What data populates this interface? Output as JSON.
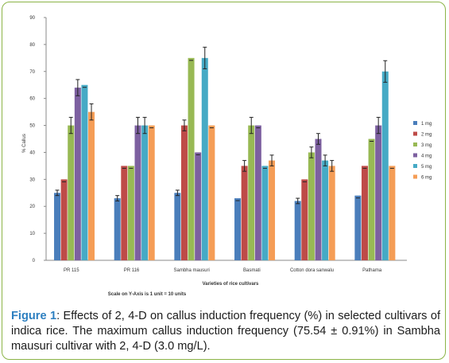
{
  "chart_data": {
    "type": "bar",
    "title": "",
    "ylabel": "% Callus",
    "xlabel": "Varieties of rice cultivars",
    "scale_note": "Scale on Y-Axis is 1 unit = 10 units",
    "ylim": [
      0,
      90
    ],
    "yticks": [
      "0",
      "10",
      "20",
      "30",
      "40",
      "50",
      "60",
      "70",
      "80",
      "90"
    ],
    "categories": [
      "PR 115",
      "PR 116",
      "Sambha mausuri",
      "Basmati",
      "Cotton dora sanwalu",
      "Pathama"
    ],
    "series": [
      {
        "name": "1 mg",
        "color": "#4a7ebb",
        "values": [
          25,
          23,
          25,
          23,
          22,
          24
        ],
        "errors": [
          1,
          1,
          1,
          0,
          1,
          0
        ]
      },
      {
        "name": "2 mg",
        "color": "#be4b48",
        "values": [
          30,
          35,
          50,
          35,
          30,
          35
        ],
        "errors": [
          0,
          0,
          2,
          2,
          0,
          0
        ]
      },
      {
        "name": "3 mg",
        "color": "#98b954",
        "values": [
          50,
          35,
          75,
          50,
          40,
          45
        ],
        "errors": [
          3,
          0,
          0,
          3,
          2,
          0
        ]
      },
      {
        "name": "4 mg",
        "color": "#7d60a0",
        "values": [
          64,
          50,
          40,
          50,
          45,
          50
        ],
        "errors": [
          3,
          3,
          0,
          0,
          2,
          3
        ]
      },
      {
        "name": "5 mg",
        "color": "#46aac5",
        "values": [
          65,
          50,
          75,
          35,
          37,
          70
        ],
        "errors": [
          0,
          3,
          4,
          0,
          2,
          4
        ]
      },
      {
        "name": "6 mg",
        "color": "#f59d56",
        "values": [
          55,
          50,
          50,
          37,
          35,
          35
        ],
        "errors": [
          3,
          0,
          0,
          2,
          2,
          0
        ]
      }
    ],
    "grid": false,
    "legend_position": "right"
  },
  "caption": {
    "label": "Figure 1",
    "text": ": Effects of 2, 4-D on callus induction frequency (%) in selected cultivars of indica rice. The maximum callus induction frequency (75.54 ± 0.91%) in Sambha mausuri cultivar with 2, 4-D (3.0 mg/L)."
  }
}
